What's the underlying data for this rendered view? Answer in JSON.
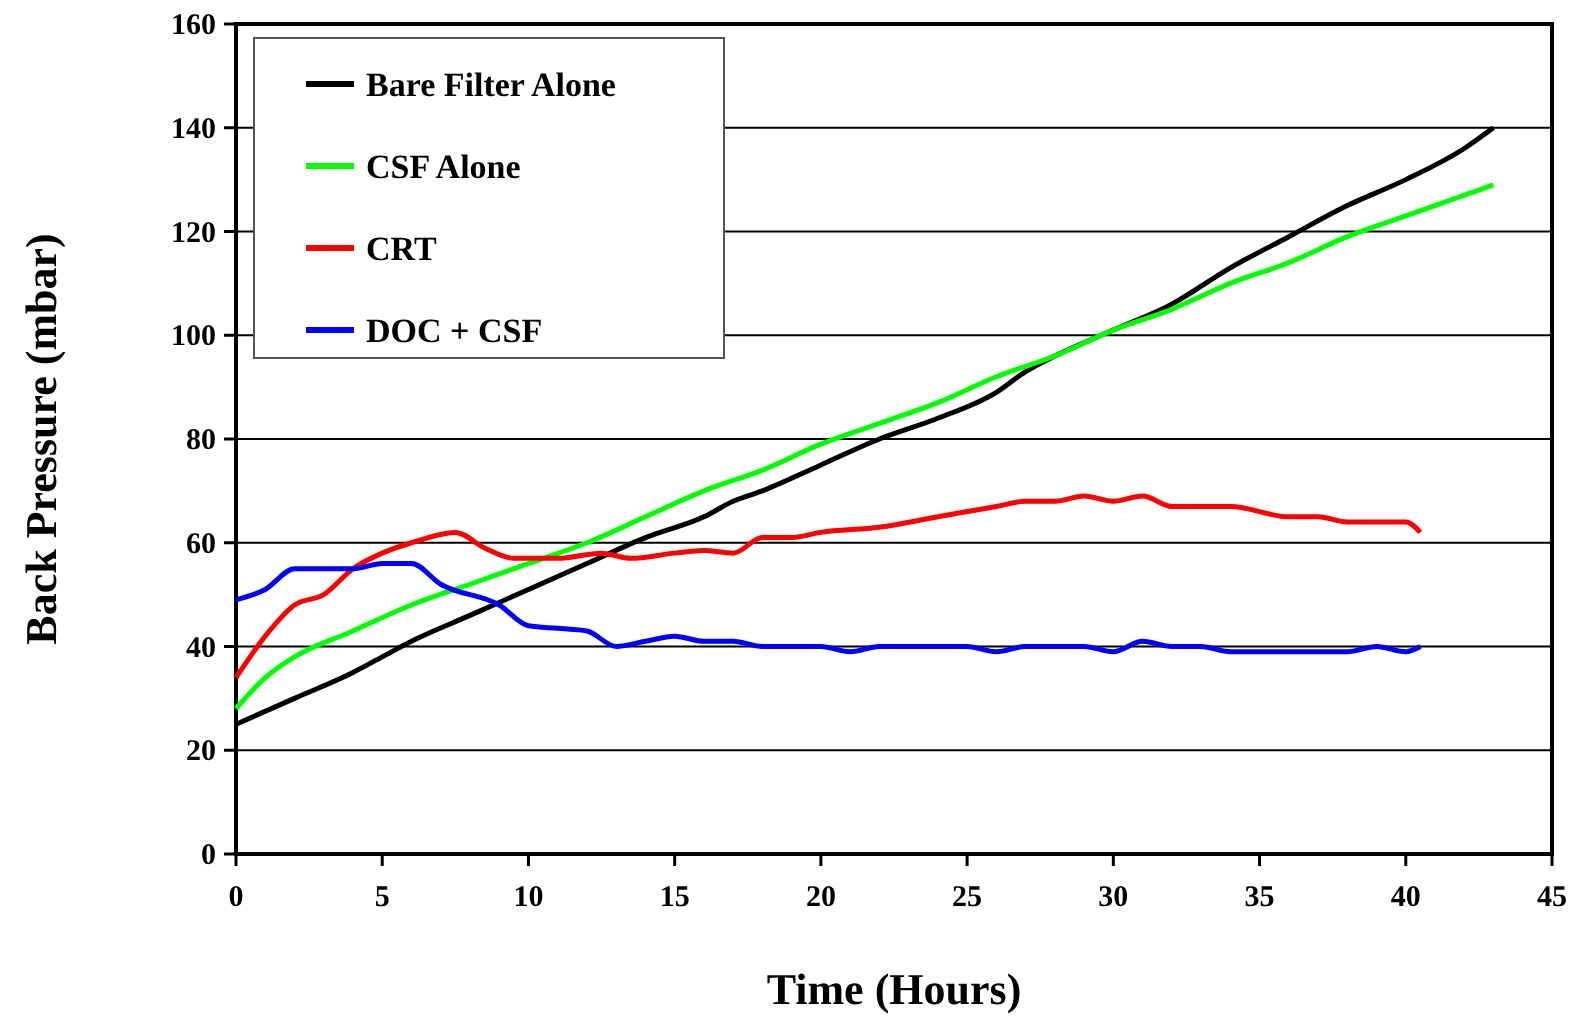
{
  "chart_data": {
    "type": "line",
    "xlabel": "Time (Hours)",
    "ylabel": "Back Pressure (mbar)",
    "xlim": [
      0,
      45
    ],
    "xticks": [
      0,
      5,
      10,
      15,
      20,
      25,
      30,
      35,
      40,
      45
    ],
    "ylim": [
      0,
      160
    ],
    "yticks": [
      0,
      20,
      40,
      60,
      80,
      100,
      120,
      140,
      160
    ],
    "grid": "y",
    "legend": "top left",
    "marker": "none",
    "line_style": "solid",
    "series": [
      {
        "name": "Bare Filter Alone",
        "color": "#000000",
        "x": [
          0,
          2,
          4,
          5,
          6,
          8,
          10,
          12,
          14,
          16,
          17,
          18,
          20,
          22,
          24,
          26,
          27,
          28,
          30,
          32,
          34,
          36,
          38,
          40,
          42,
          43
        ],
        "values": [
          25,
          30,
          35,
          38,
          41,
          46,
          51,
          56,
          61,
          65,
          68,
          70,
          75,
          80,
          84,
          89,
          93,
          96,
          101,
          106,
          113,
          119,
          125,
          130,
          136,
          140
        ]
      },
      {
        "name": "CSF Alone",
        "color": "#00ff00",
        "x": [
          0,
          1,
          2,
          4,
          6,
          8,
          10,
          12,
          14,
          16,
          18,
          20,
          22,
          24,
          26,
          28,
          30,
          32,
          34,
          36,
          38,
          40,
          43
        ],
        "values": [
          28,
          34,
          38,
          43,
          48,
          52,
          56,
          60,
          65,
          70,
          74,
          79,
          83,
          87,
          92,
          96,
          101,
          105,
          110,
          114,
          119,
          123,
          129
        ]
      },
      {
        "name": "CRT",
        "color": "#ff0000",
        "x": [
          0,
          1,
          2,
          3,
          4,
          5,
          6,
          7.5,
          8.5,
          9.5,
          11,
          12.5,
          13.5,
          15,
          16,
          17,
          18,
          19,
          20,
          22,
          24,
          26,
          27,
          28,
          29,
          30,
          31,
          32,
          34,
          36,
          37,
          38,
          40,
          40.5
        ],
        "values": [
          34,
          42,
          48,
          50,
          55,
          58,
          60,
          62,
          59,
          57,
          57,
          58,
          57,
          58,
          58.5,
          58,
          61,
          61,
          62,
          63,
          65,
          67,
          68,
          68,
          69,
          68,
          69,
          67,
          67,
          65,
          65,
          64,
          64,
          62
        ]
      },
      {
        "name": "DOC + CSF",
        "color": "#0000ff",
        "x": [
          0,
          1,
          2,
          3,
          4,
          5,
          6,
          7,
          9,
          10,
          11,
          12,
          13,
          14,
          15,
          16,
          17,
          18,
          20,
          21,
          22,
          25,
          26,
          27,
          29,
          30,
          31,
          32,
          33,
          34,
          38,
          39,
          40,
          40.5
        ],
        "values": [
          49,
          51,
          55,
          55,
          55,
          56,
          56,
          52,
          48,
          44,
          43.5,
          43,
          40,
          41,
          42,
          41,
          41,
          40,
          40,
          39,
          40,
          40,
          39,
          40,
          40,
          39,
          41,
          40,
          40,
          39,
          39,
          40,
          39,
          40
        ]
      }
    ]
  }
}
